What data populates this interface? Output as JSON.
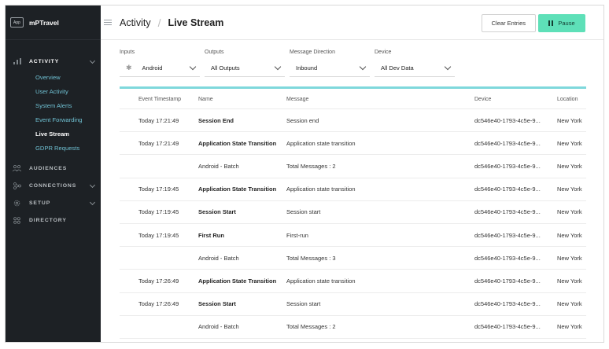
{
  "app": {
    "badge": "App",
    "name": "mPTravel"
  },
  "sidebar": {
    "sections": [
      {
        "label": "ACTIVITY",
        "icon": "bar-chart-icon"
      },
      {
        "label": "AUDIENCES",
        "icon": "people-icon"
      },
      {
        "label": "CONNECTIONS",
        "icon": "connections-icon"
      },
      {
        "label": "SETUP",
        "icon": "gear-icon"
      },
      {
        "label": "DIRECTORY",
        "icon": "grid-icon"
      }
    ],
    "activity_items": [
      "Overview",
      "User Activity",
      "System Alerts",
      "Event Forwarding",
      "Live Stream",
      "GDPR Requests"
    ]
  },
  "header": {
    "breadcrumb_root": "Activity",
    "breadcrumb_separator": "/",
    "breadcrumb_current": "Live Stream",
    "clear_label": "Clear Entries",
    "pause_label": "Pause"
  },
  "filters": {
    "inputs": {
      "label": "Inputs",
      "value": "Android"
    },
    "outputs": {
      "label": "Outputs",
      "value": "All Outputs"
    },
    "direction": {
      "label": "Message Direction",
      "value": "Inbound"
    },
    "device": {
      "label": "Device",
      "value": "All Dev Data"
    }
  },
  "table": {
    "headers": [
      "Event Timestamp",
      "Name",
      "Message",
      "Device",
      "Location"
    ],
    "rows": [
      {
        "ts": "Today 17:21:49",
        "name": "Session End",
        "bold": true,
        "msg": "Session end",
        "device": "dc546e40-1793-4c5e-9...",
        "loc": "New York"
      },
      {
        "ts": "Today 17:21:49",
        "name": "Application State Transition",
        "bold": true,
        "msg": "Application state transition",
        "device": "dc546e40-1793-4c5e-9...",
        "loc": "New York"
      },
      {
        "ts": "",
        "name": "Android - Batch",
        "bold": false,
        "msg": "Total Messages : 2",
        "device": "dc546e40-1793-4c5e-9...",
        "loc": "New York"
      },
      {
        "ts": "Today 17:19:45",
        "name": "Application State Transition",
        "bold": true,
        "msg": "Application state transition",
        "device": "dc546e40-1793-4c5e-9...",
        "loc": "New York"
      },
      {
        "ts": "Today 17:19:45",
        "name": "Session Start",
        "bold": true,
        "msg": "Session start",
        "device": "dc546e40-1793-4c5e-9...",
        "loc": "New York"
      },
      {
        "ts": "Today 17:19:45",
        "name": "First Run",
        "bold": true,
        "msg": "First-run",
        "device": "dc546e40-1793-4c5e-9...",
        "loc": "New York"
      },
      {
        "ts": "",
        "name": "Android - Batch",
        "bold": false,
        "msg": "Total Messages : 3",
        "device": "dc546e40-1793-4c5e-9...",
        "loc": "New York"
      },
      {
        "ts": "Today 17:26:49",
        "name": "Application State Transition",
        "bold": true,
        "msg": "Application state transition",
        "device": "dc546e40-1793-4c5e-9...",
        "loc": "New York"
      },
      {
        "ts": "Today 17:26:49",
        "name": "Session Start",
        "bold": true,
        "msg": "Session start",
        "device": "dc546e40-1793-4c5e-9...",
        "loc": "New York"
      },
      {
        "ts": "",
        "name": "Android - Batch",
        "bold": false,
        "msg": "Total Messages : 2",
        "device": "dc546e40-1793-4c5e-9...",
        "loc": "New York"
      }
    ]
  },
  "colors": {
    "sidebar_bg": "#1d2125",
    "accent_link": "#6fc0d2",
    "pause_bg": "#5ee0b8",
    "rule": "#7fd8dc"
  }
}
